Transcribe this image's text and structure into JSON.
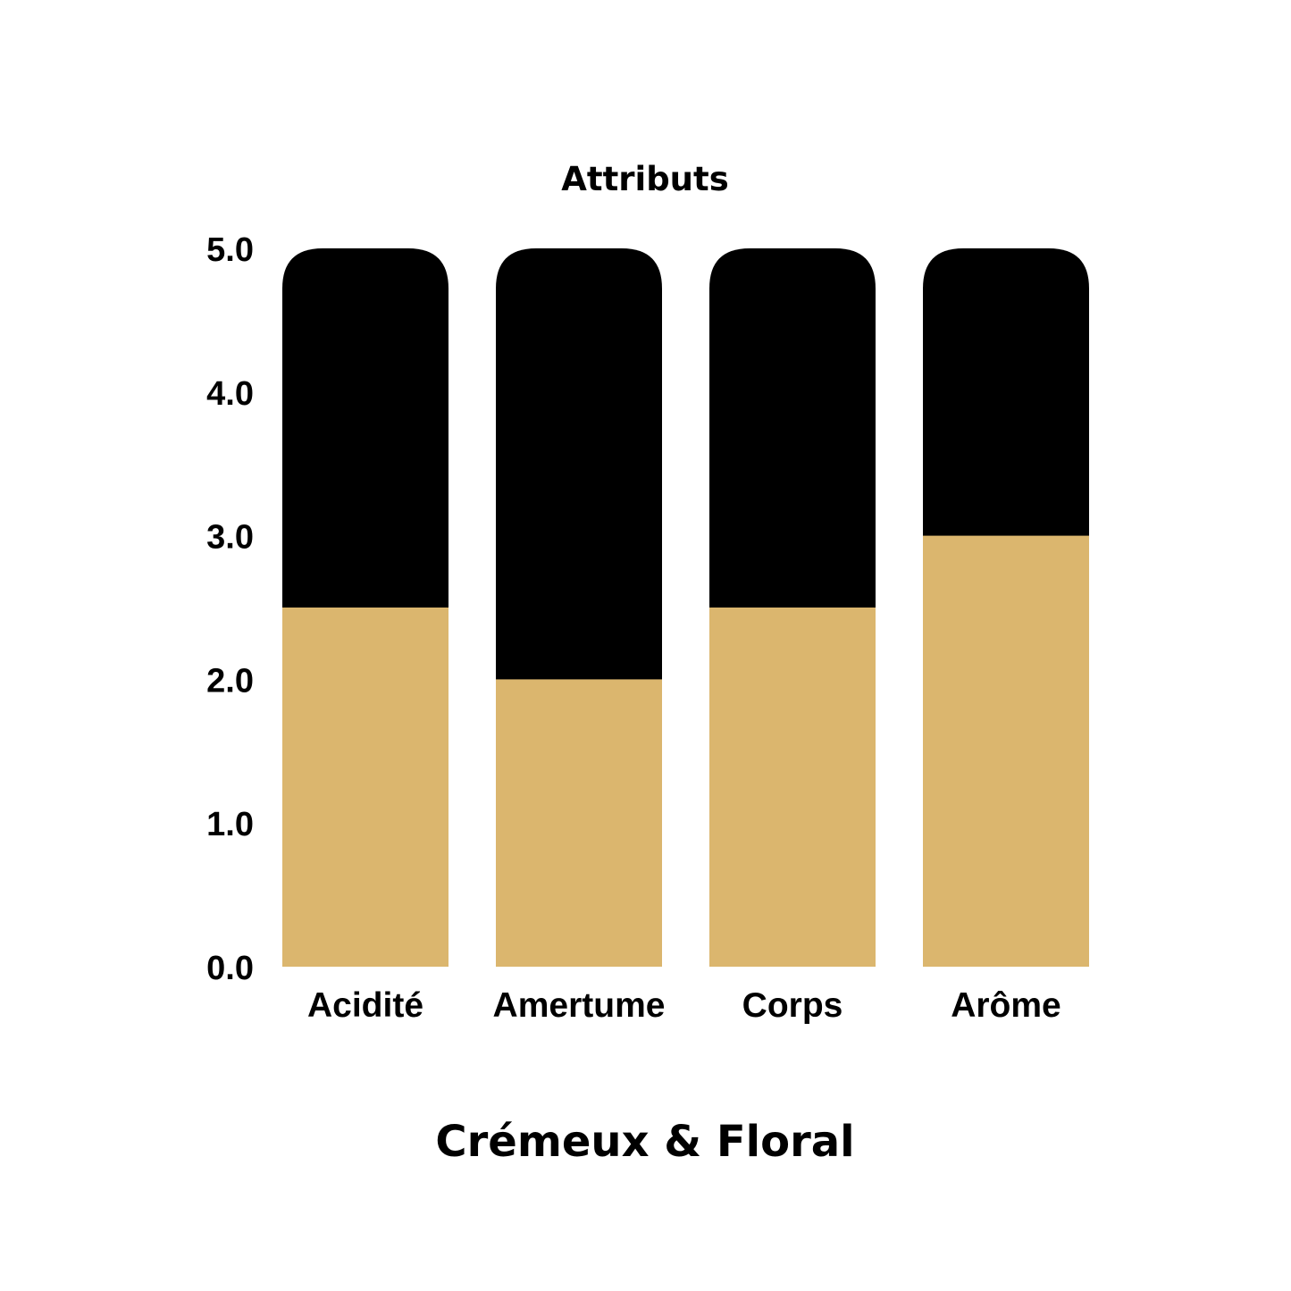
{
  "chart_data": {
    "type": "bar",
    "title": "Attributs",
    "footer": "Crémeux & Floral",
    "categories": [
      "Acidité",
      "Amertume",
      "Corps",
      "Arôme"
    ],
    "values": [
      2.5,
      2.0,
      2.5,
      3.0
    ],
    "max_values": [
      5.0,
      5.0,
      5.0,
      5.0
    ],
    "ylim": [
      0,
      5
    ],
    "yticks": [
      "0.0",
      "1.0",
      "2.0",
      "3.0",
      "4.0",
      "5.0"
    ],
    "grid": false,
    "colors": {
      "value": "#dbb66e",
      "remainder": "#000000",
      "text": "#000000",
      "background": "#ffffff"
    }
  }
}
